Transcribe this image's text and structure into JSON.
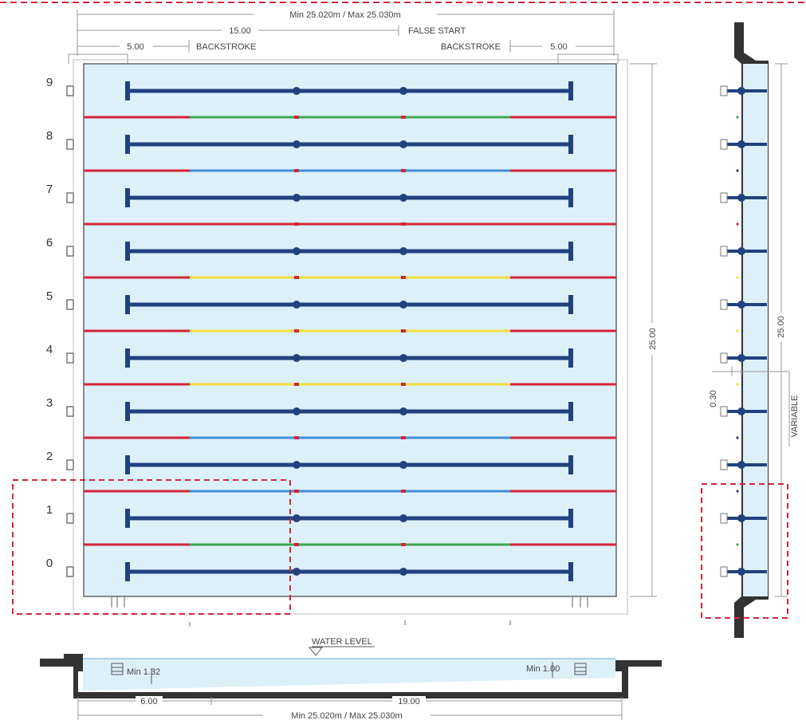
{
  "dimensions": {
    "overall_length_top": "Min 25.020m / Max 25.030m",
    "overall_length_bottom": "Min 25.020m / Max 25.030m",
    "false_start": "15.00",
    "false_start_label": "FALSE START",
    "backstroke_left": "5.00",
    "backstroke_left_label": "BACKSTROKE",
    "backstroke_right": "5.00",
    "backstroke_right_label": "BACKSTROKE",
    "pool_width": "25.00",
    "side_width": "25.00",
    "side_offset": "0.30",
    "side_variable": "VARIABLE",
    "water_level": "WATER LEVEL",
    "depth_left": "Min 1.32",
    "depth_right": "Min 1.00",
    "section_length": "19.00",
    "section_left": "6.00"
  },
  "lanes": [
    {
      "number": "9"
    },
    {
      "number": "8"
    },
    {
      "number": "7"
    },
    {
      "number": "6"
    },
    {
      "number": "5"
    },
    {
      "number": "4"
    },
    {
      "number": "3"
    },
    {
      "number": "2"
    },
    {
      "number": "1"
    },
    {
      "number": "0"
    }
  ],
  "rope_colors": [
    "green",
    "blue",
    "red",
    "yellow",
    "yellow",
    "yellow",
    "blue",
    "blue",
    "green"
  ],
  "colors": {
    "water": "#dcf0f8",
    "lane_line": "#22417f",
    "rope_end": "#d4253a",
    "green": "#3fa652",
    "blue": "#3f8fd6",
    "yellow": "#f4dd3c",
    "red": "#d4253a",
    "highlight": "#d4253a",
    "wall": "#333333"
  }
}
